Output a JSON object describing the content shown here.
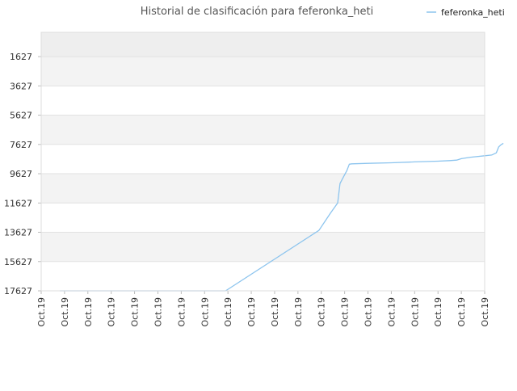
{
  "chart_data": {
    "type": "line",
    "title": "Historial de clasificación para feferonka_heti",
    "xlabel": "",
    "ylabel": "",
    "y_inverted": true,
    "ylim": [
      17627,
      -33
    ],
    "yticks": [
      1627,
      3627,
      5627,
      7627,
      9627,
      11627,
      13627,
      15627,
      17627
    ],
    "xticks": [
      "Oct.19",
      "Oct.19",
      "Oct.19",
      "Oct.19",
      "Oct.19",
      "Oct.19",
      "Oct.19",
      "Oct.19",
      "Oct.19",
      "Oct.19",
      "Oct.19",
      "Oct.19",
      "Oct.19",
      "Oct.19",
      "Oct.19",
      "Oct.19",
      "Oct.19",
      "Oct.19",
      "Oct.19",
      "Oct.19"
    ],
    "grid": true,
    "legend_position": "top-right",
    "series": [
      {
        "name": "feferonka_heti",
        "color": "#8cc4ee",
        "x": [
          0.8,
          7.9,
          11.9,
          12.4,
          12.7,
          12.8,
          12.9,
          13.1,
          13.2,
          13.3,
          14.0,
          15.0,
          16.0,
          17.0,
          17.5,
          17.8,
          18.0,
          18.4,
          19.0,
          19.3,
          19.5,
          19.6,
          19.7,
          19.8
        ],
        "values": [
          17627,
          17627,
          13500,
          12300,
          11627,
          10300,
          10000,
          9400,
          8980,
          8950,
          8920,
          8880,
          8820,
          8770,
          8730,
          8700,
          8600,
          8500,
          8400,
          8350,
          8200,
          7800,
          7650,
          7550
        ]
      }
    ]
  }
}
